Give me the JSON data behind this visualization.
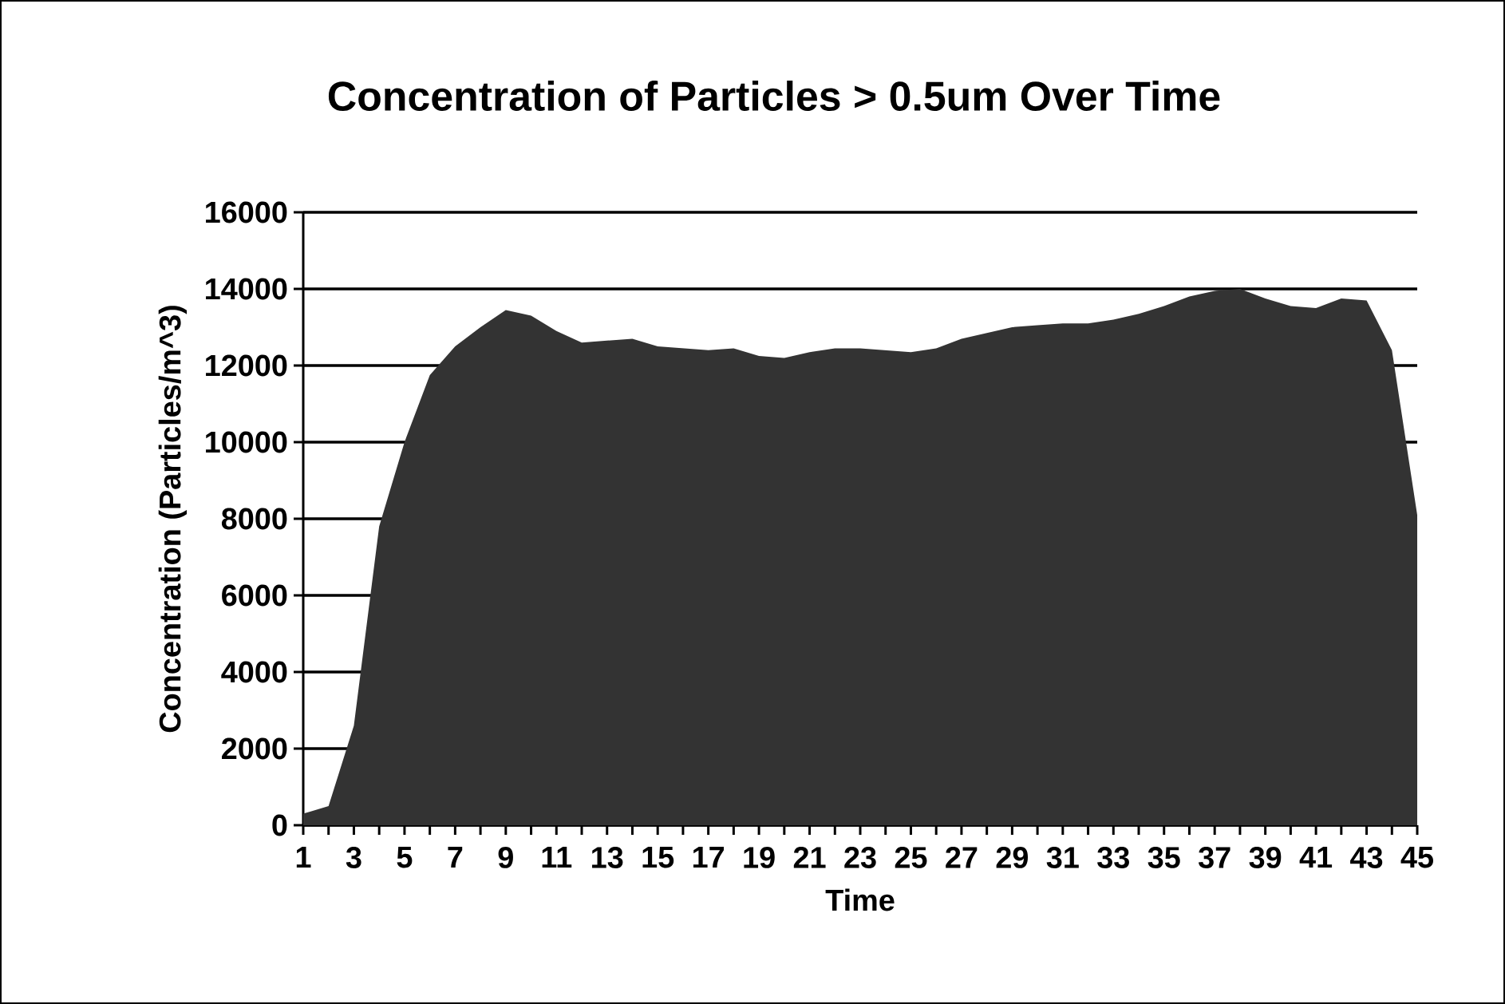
{
  "chart_data": {
    "type": "area",
    "title": "Concentration of Particles > 0.5um Over Time",
    "xlabel": "Time",
    "ylabel": "Concentration (Particles/m^3)",
    "categories": [
      "1",
      null,
      "3",
      null,
      "5",
      null,
      "7",
      null,
      "9",
      null,
      "11",
      null,
      "13",
      null,
      "15",
      null,
      "17",
      null,
      "19",
      null,
      "21",
      null,
      "23",
      null,
      "25",
      null,
      "27",
      null,
      "29",
      null,
      "31",
      null,
      "33",
      null,
      "35",
      null,
      "37",
      null,
      "39",
      null,
      "41",
      null,
      "43",
      null,
      "45"
    ],
    "values": [
      300,
      500,
      2600,
      7800,
      10000,
      11750,
      12500,
      13000,
      13450,
      13300,
      12900,
      12600,
      12650,
      12700,
      12500,
      12450,
      12400,
      12450,
      12250,
      12200,
      12350,
      12450,
      12450,
      12400,
      12350,
      12450,
      12700,
      12850,
      13000,
      13050,
      13100,
      13100,
      13200,
      13350,
      13550,
      13800,
      13950,
      14000,
      13750,
      13550,
      13500,
      13750,
      13700,
      12400,
      8100
    ],
    "color": "#333333",
    "ylim": [
      0,
      16000
    ],
    "yticks": [
      0,
      2000,
      4000,
      6000,
      8000,
      10000,
      12000,
      14000,
      16000
    ],
    "grid": "y"
  }
}
